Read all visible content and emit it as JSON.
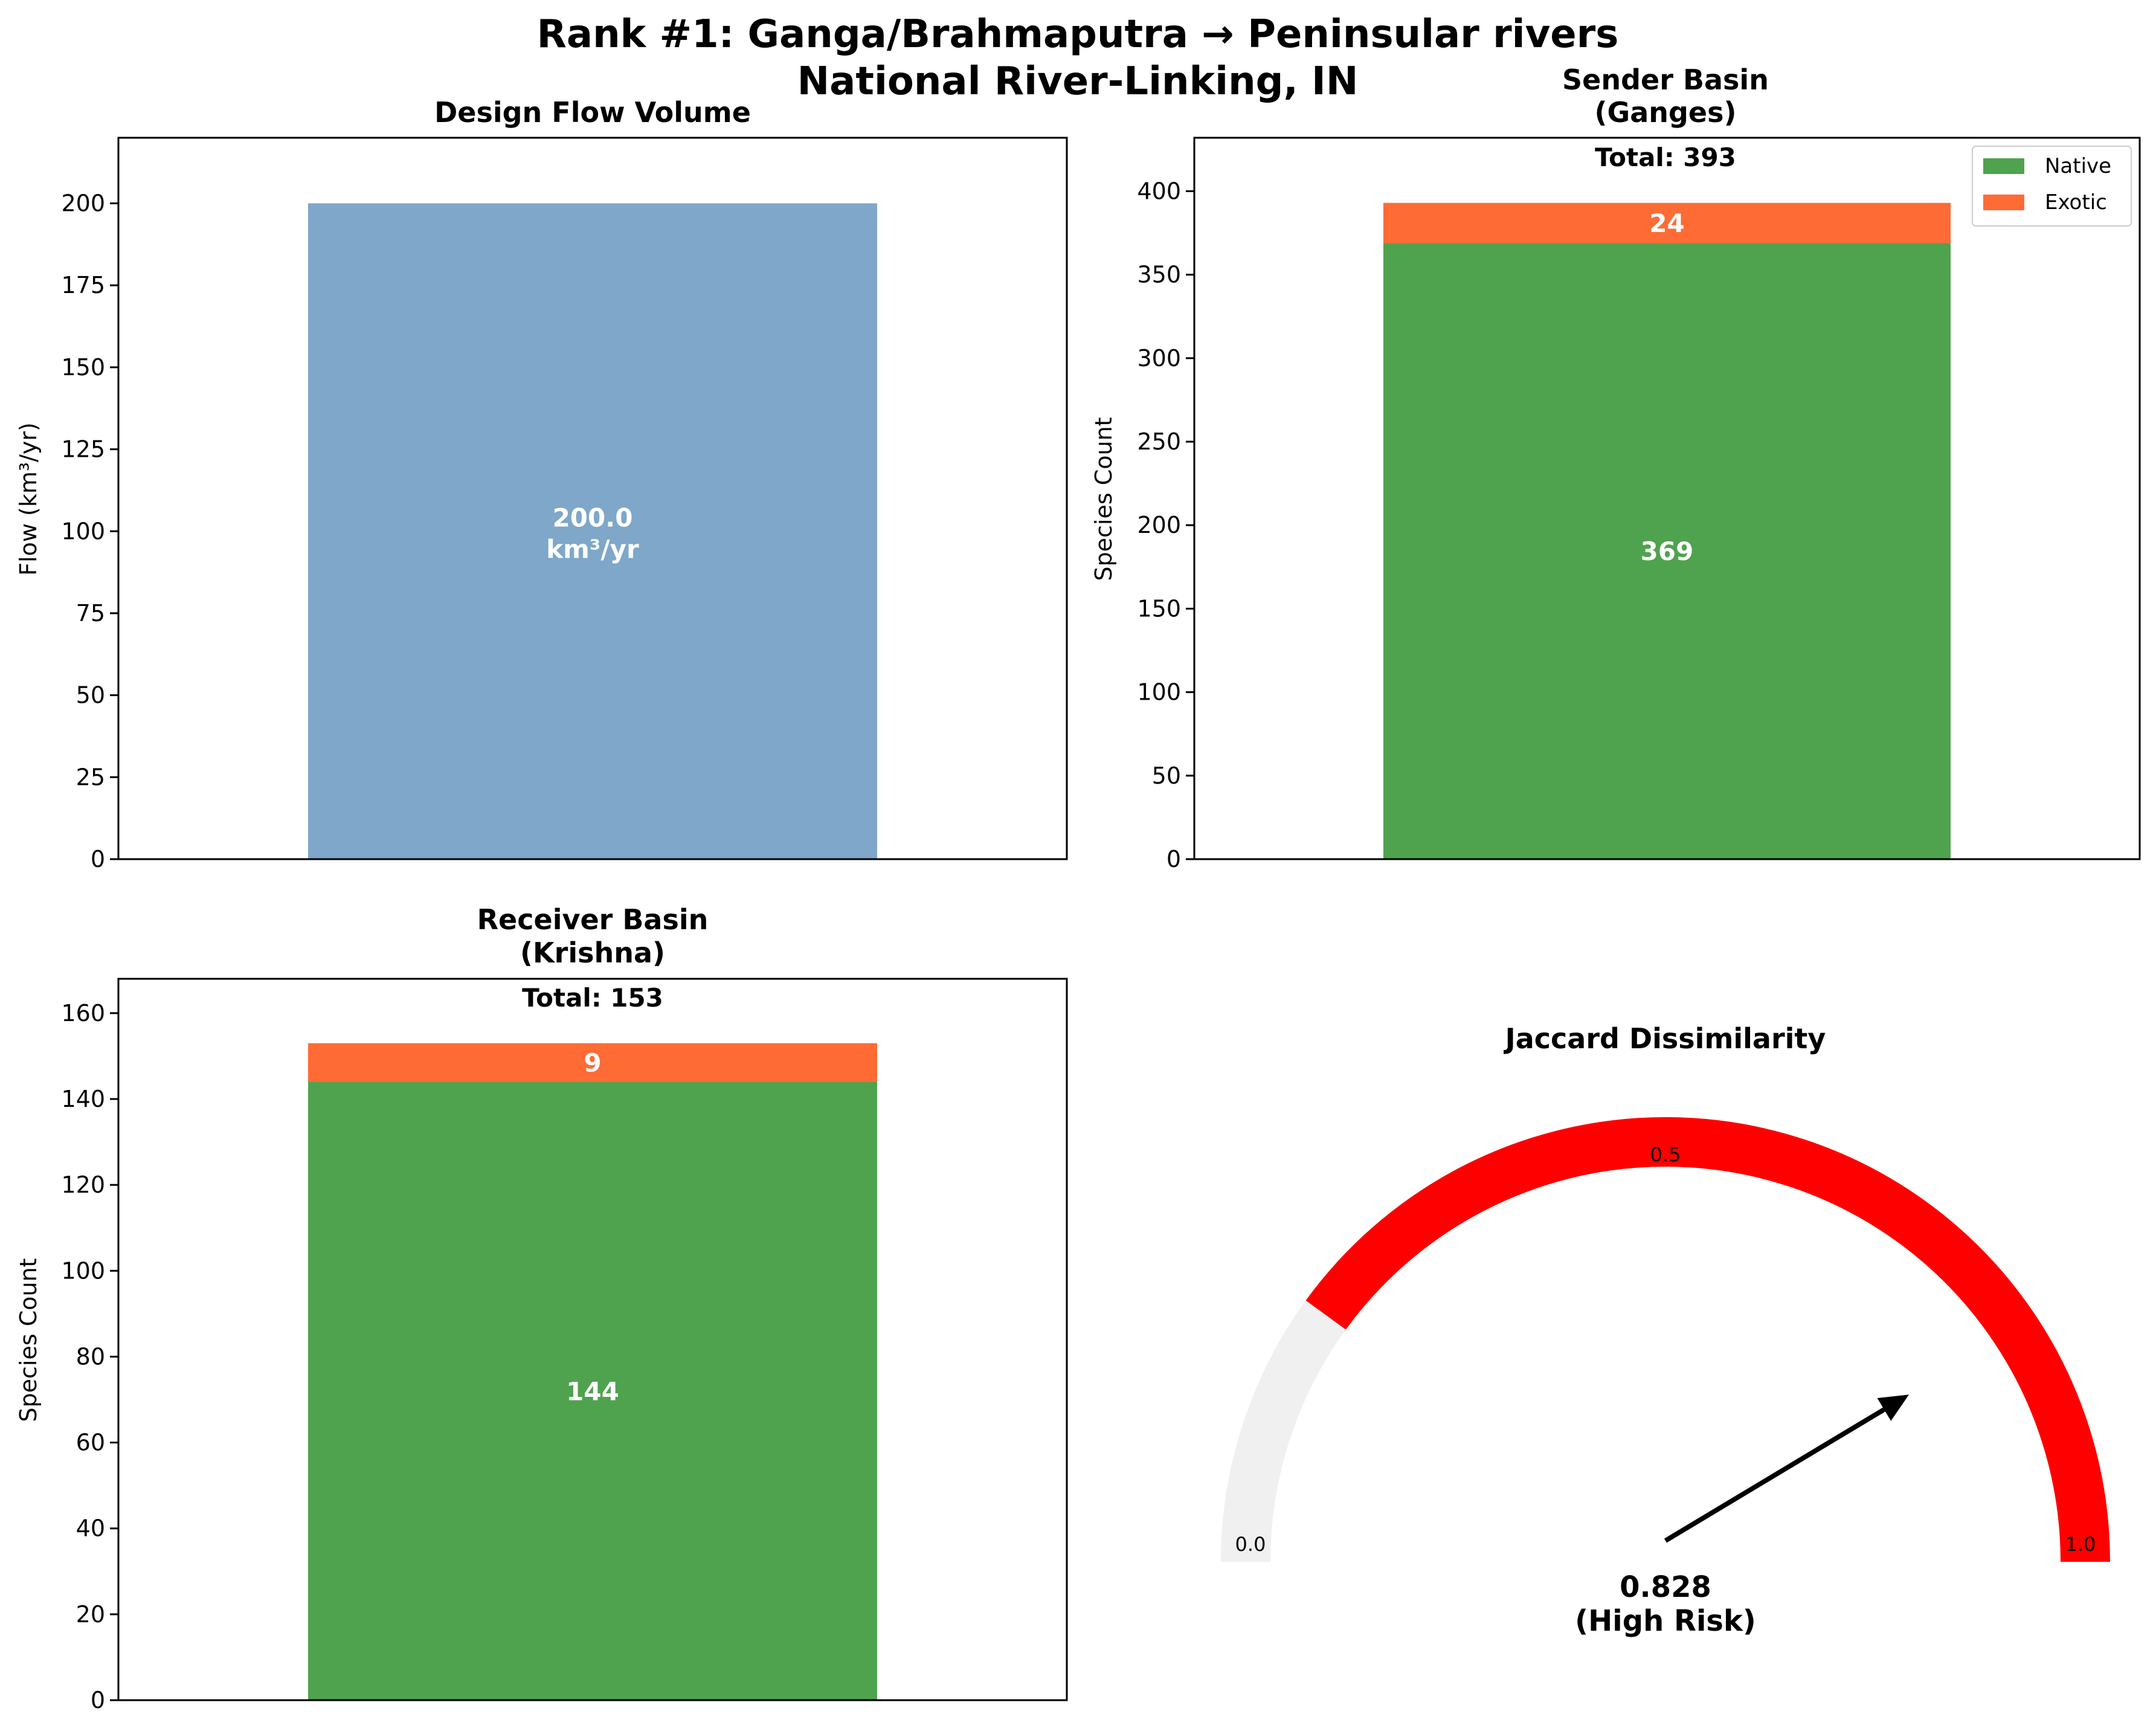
{
  "figure": {
    "title_line1": "Rank #1: Ganga/Brahmaputra → Peninsular rivers",
    "title_line2": "National River-Linking, IN"
  },
  "colors": {
    "flow_bar": "#7ea7c9",
    "native": "#4fa24e",
    "exotic": "#ff6b35",
    "gauge_fill": "#ff0000",
    "gauge_bg": "#f0f0f0"
  },
  "chart_data": [
    {
      "type": "bar",
      "title": "Design Flow Volume",
      "ylabel": "Flow (km³/yr)",
      "categories": [
        ""
      ],
      "values": [
        200.0
      ],
      "value_label_line1": "200.0",
      "value_label_line2": "km³/yr",
      "ylim": [
        0,
        220
      ],
      "yticks": [
        0,
        25,
        50,
        75,
        100,
        125,
        150,
        175,
        200
      ]
    },
    {
      "type": "bar",
      "stacked": true,
      "title_line1": "Sender Basin",
      "title_line2": "(Ganges)",
      "total_label": "Total: 393",
      "ylabel": "Species Count",
      "categories": [
        ""
      ],
      "series": [
        {
          "name": "Native",
          "values": [
            369
          ]
        },
        {
          "name": "Exotic",
          "values": [
            24
          ]
        }
      ],
      "legend": "top-right",
      "ylim": [
        0,
        432
      ],
      "yticks": [
        0,
        50,
        100,
        150,
        200,
        250,
        300,
        350,
        400
      ]
    },
    {
      "type": "bar",
      "stacked": true,
      "title_line1": "Receiver Basin",
      "title_line2": "(Krishna)",
      "total_label": "Total: 153",
      "ylabel": "Species Count",
      "categories": [
        ""
      ],
      "series": [
        {
          "name": "Native",
          "values": [
            144
          ]
        },
        {
          "name": "Exotic",
          "values": [
            9
          ]
        }
      ],
      "ylim": [
        0,
        168
      ],
      "yticks": [
        0,
        20,
        40,
        60,
        80,
        100,
        120,
        140,
        160
      ]
    },
    {
      "type": "gauge",
      "title": "Jaccard Dissimilarity",
      "value": 0.828,
      "value_label_line1": "0.828",
      "value_label_line2": "(High Risk)",
      "range": [
        0,
        1
      ],
      "filled_from": 0.2,
      "tick_labels": [
        "0.0",
        "0.5",
        "1.0"
      ],
      "tick_values": [
        0,
        0.5,
        1
      ]
    }
  ]
}
